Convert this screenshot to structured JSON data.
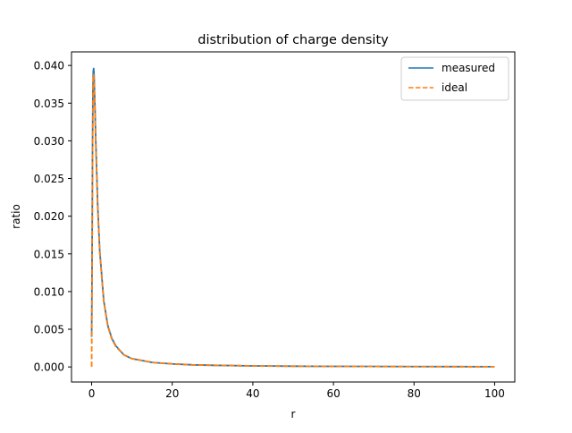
{
  "chart_data": {
    "type": "line",
    "title": "distribution of charge density",
    "xlabel": "r",
    "ylabel": "ratio",
    "xlim": [
      -5,
      105
    ],
    "ylim": [
      -0.002,
      0.0418
    ],
    "x_ticks": [
      0,
      20,
      40,
      60,
      80,
      100
    ],
    "x_tick_labels": [
      "0",
      "20",
      "40",
      "60",
      "80",
      "100"
    ],
    "y_ticks": [
      0.0,
      0.005,
      0.01,
      0.015,
      0.02,
      0.025,
      0.03,
      0.035,
      0.04
    ],
    "y_tick_labels": [
      "0.000",
      "0.005",
      "0.010",
      "0.015",
      "0.020",
      "0.025",
      "0.030",
      "0.035",
      "0.040"
    ],
    "grid": false,
    "legend_position": "top-right",
    "x": [
      0.0,
      0.1,
      0.2,
      0.3,
      0.4,
      0.5,
      0.6,
      0.8,
      1.0,
      1.5,
      2,
      3,
      4,
      5,
      6,
      8,
      10,
      15,
      20,
      25,
      30,
      40,
      50,
      60,
      70,
      80,
      90,
      100
    ],
    "series": [
      {
        "name": "measured",
        "color": "#1f77b4",
        "dash": "solid",
        "values": [
          0.004,
          0.014,
          0.027,
          0.036,
          0.0392,
          0.0396,
          0.0388,
          0.035,
          0.0305,
          0.0215,
          0.0155,
          0.0088,
          0.0055,
          0.0038,
          0.0028,
          0.0016,
          0.0011,
          0.0006,
          0.0004,
          0.00028,
          0.00022,
          0.00014,
          0.0001,
          8e-05,
          6e-05,
          5e-05,
          4e-05,
          3e-05
        ]
      },
      {
        "name": "ideal",
        "color": "#ff7f0e",
        "dash": "dashed",
        "values": [
          0.0,
          0.012,
          0.025,
          0.0345,
          0.0382,
          0.0388,
          0.038,
          0.0345,
          0.03,
          0.0212,
          0.0153,
          0.0087,
          0.0054,
          0.0037,
          0.0027,
          0.0016,
          0.0011,
          0.0006,
          0.0004,
          0.00028,
          0.00022,
          0.00014,
          0.0001,
          8e-05,
          6e-05,
          5e-05,
          4e-05,
          3e-05
        ]
      }
    ]
  }
}
